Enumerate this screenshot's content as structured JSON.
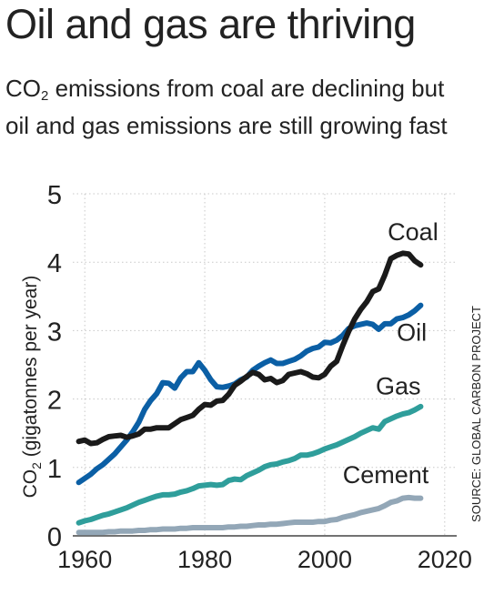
{
  "header": {
    "title": "Oil and gas are thriving",
    "subtitle_co": "CO",
    "subtitle_sub": "2",
    "subtitle_rest": " emissions from coal are declining but oil and gas emissions are still growing fast"
  },
  "source": "SOURCE: GLOBAL CARBON PROJECT",
  "colors": {
    "coal": "#1a1a1a",
    "oil": "#0b5fa5",
    "gas": "#2f9e9b",
    "cement": "#93a7b7",
    "grid": "#c8c8c8",
    "text": "#222222"
  },
  "chart_data": {
    "type": "line",
    "xlabel": "",
    "ylabel_co": "CO",
    "ylabel_sub": "2",
    "ylabel_rest": " (gigatonnes per year)",
    "xlim": [
      1958,
      2022
    ],
    "ylim": [
      0,
      5
    ],
    "xticks": [
      1960,
      1980,
      2000,
      2020
    ],
    "yticks": [
      0,
      1,
      2,
      3,
      4,
      5
    ],
    "grid": true,
    "legend": "direct labels",
    "x": [
      1959,
      1960,
      1961,
      1962,
      1963,
      1964,
      1965,
      1966,
      1967,
      1968,
      1969,
      1970,
      1971,
      1972,
      1973,
      1974,
      1975,
      1976,
      1977,
      1978,
      1979,
      1980,
      1981,
      1982,
      1983,
      1984,
      1985,
      1986,
      1987,
      1988,
      1989,
      1990,
      1991,
      1992,
      1993,
      1994,
      1995,
      1996,
      1997,
      1998,
      1999,
      2000,
      2001,
      2002,
      2003,
      2004,
      2005,
      2006,
      2007,
      2008,
      2009,
      2010,
      2011,
      2012,
      2013,
      2014,
      2015,
      2016
    ],
    "series": [
      {
        "name": "Coal",
        "key": "coal",
        "values": [
          1.38,
          1.4,
          1.35,
          1.36,
          1.41,
          1.45,
          1.46,
          1.47,
          1.44,
          1.46,
          1.49,
          1.56,
          1.56,
          1.58,
          1.58,
          1.58,
          1.64,
          1.7,
          1.73,
          1.76,
          1.85,
          1.92,
          1.91,
          1.97,
          1.98,
          2.07,
          2.2,
          2.26,
          2.33,
          2.39,
          2.36,
          2.28,
          2.3,
          2.24,
          2.27,
          2.36,
          2.38,
          2.4,
          2.37,
          2.32,
          2.31,
          2.36,
          2.48,
          2.55,
          2.78,
          2.99,
          3.17,
          3.31,
          3.42,
          3.57,
          3.61,
          3.81,
          4.05,
          4.1,
          4.13,
          4.12,
          4.02,
          3.96
        ]
      },
      {
        "name": "Oil",
        "key": "oil",
        "values": [
          0.78,
          0.84,
          0.9,
          0.98,
          1.04,
          1.12,
          1.2,
          1.3,
          1.4,
          1.52,
          1.66,
          1.85,
          1.98,
          2.08,
          2.24,
          2.23,
          2.16,
          2.31,
          2.4,
          2.4,
          2.53,
          2.42,
          2.28,
          2.18,
          2.17,
          2.19,
          2.22,
          2.28,
          2.32,
          2.42,
          2.48,
          2.53,
          2.57,
          2.52,
          2.52,
          2.55,
          2.58,
          2.63,
          2.7,
          2.74,
          2.76,
          2.83,
          2.82,
          2.86,
          2.93,
          3.03,
          3.07,
          3.09,
          3.11,
          3.09,
          3.02,
          3.1,
          3.1,
          3.17,
          3.19,
          3.23,
          3.29,
          3.37
        ]
      },
      {
        "name": "Gas",
        "key": "gas",
        "values": [
          0.19,
          0.22,
          0.24,
          0.27,
          0.3,
          0.32,
          0.35,
          0.38,
          0.41,
          0.45,
          0.49,
          0.52,
          0.55,
          0.58,
          0.6,
          0.6,
          0.61,
          0.64,
          0.66,
          0.69,
          0.73,
          0.74,
          0.75,
          0.74,
          0.75,
          0.81,
          0.83,
          0.82,
          0.88,
          0.92,
          0.96,
          1.01,
          1.04,
          1.05,
          1.08,
          1.1,
          1.13,
          1.18,
          1.18,
          1.2,
          1.23,
          1.27,
          1.3,
          1.33,
          1.37,
          1.41,
          1.45,
          1.5,
          1.54,
          1.58,
          1.56,
          1.67,
          1.71,
          1.75,
          1.78,
          1.8,
          1.84,
          1.89
        ]
      },
      {
        "name": "Cement",
        "key": "cement",
        "values": [
          0.05,
          0.05,
          0.05,
          0.05,
          0.05,
          0.06,
          0.06,
          0.07,
          0.07,
          0.07,
          0.08,
          0.08,
          0.09,
          0.09,
          0.1,
          0.1,
          0.1,
          0.11,
          0.11,
          0.12,
          0.12,
          0.12,
          0.12,
          0.12,
          0.12,
          0.13,
          0.13,
          0.14,
          0.14,
          0.15,
          0.16,
          0.16,
          0.17,
          0.17,
          0.18,
          0.19,
          0.2,
          0.2,
          0.2,
          0.2,
          0.21,
          0.21,
          0.23,
          0.24,
          0.27,
          0.29,
          0.31,
          0.34,
          0.36,
          0.38,
          0.4,
          0.44,
          0.49,
          0.51,
          0.55,
          0.56,
          0.55,
          0.55
        ]
      }
    ]
  }
}
